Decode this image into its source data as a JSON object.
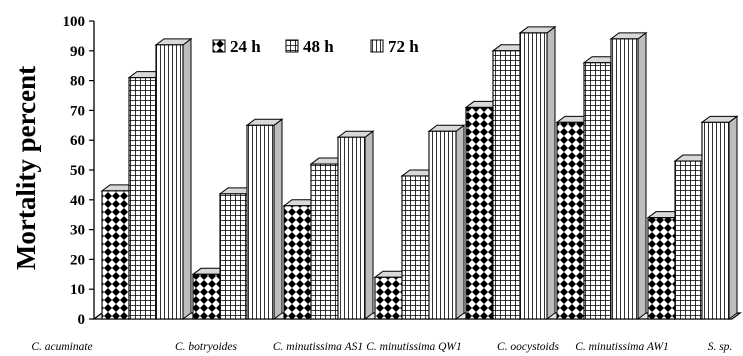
{
  "chart_data": {
    "type": "bar",
    "style": "3d-clustered",
    "title": "",
    "xlabel": "",
    "ylabel": "Mortality percent",
    "ylim": [
      0,
      100
    ],
    "yticks": [
      0,
      10,
      20,
      30,
      40,
      50,
      60,
      70,
      80,
      90,
      100
    ],
    "grid": false,
    "legend_position": "top",
    "categories": [
      "C. acuminate",
      "C. botryoides",
      "C. minutissima AS1",
      "C. minutissima QW1",
      "C. oocystoids",
      "C. minutissima AW1",
      "S. sp."
    ],
    "series": [
      {
        "name": "24 h",
        "pattern": "diamond",
        "values": [
          43,
          15,
          38,
          14,
          71,
          66,
          34
        ]
      },
      {
        "name": "48 h",
        "pattern": "grid",
        "values": [
          81,
          42,
          52,
          48,
          90,
          86,
          53
        ]
      },
      {
        "name": "72 h",
        "pattern": "vertical",
        "values": [
          92,
          65,
          61,
          63,
          96,
          94,
          66
        ]
      }
    ]
  }
}
